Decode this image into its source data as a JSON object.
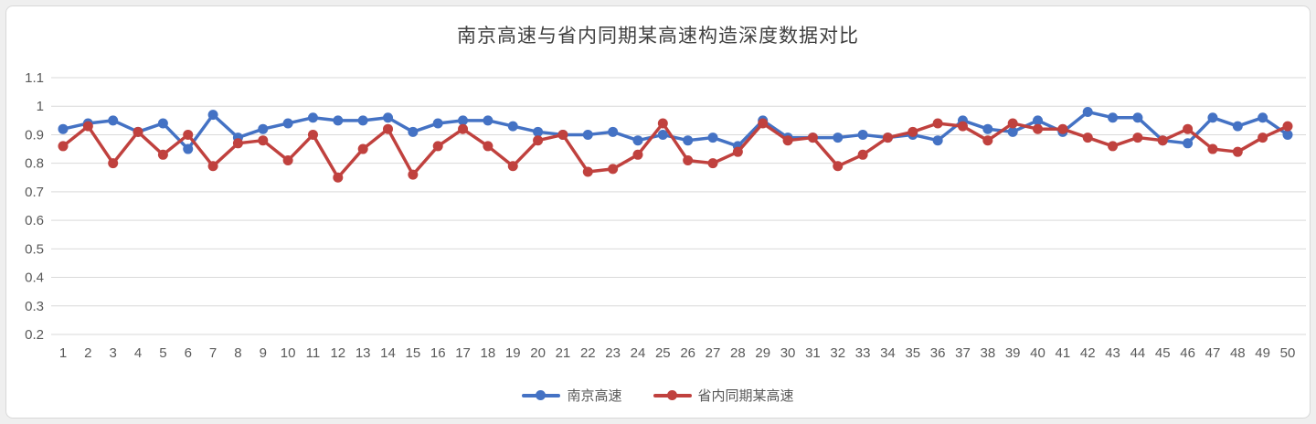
{
  "panel": {
    "background": "#ffffff",
    "border_color": "#d8d8d8"
  },
  "chart_data": {
    "type": "line",
    "title": "南京高速与省内同期某高速构造深度数据对比",
    "xlabel": "",
    "ylabel": "",
    "ylim": [
      0.2,
      1.1
    ],
    "grid": true,
    "legend_position": "bottom",
    "y_ticks": [
      "1.1",
      "1",
      "0.9",
      "0.8",
      "0.7",
      "0.6",
      "0.5",
      "0.4",
      "0.3",
      "0.2"
    ],
    "y_tick_values": [
      1.1,
      1.0,
      0.9,
      0.8,
      0.7,
      0.6,
      0.5,
      0.4,
      0.3,
      0.2
    ],
    "x": [
      1,
      2,
      3,
      4,
      5,
      6,
      7,
      8,
      9,
      10,
      11,
      12,
      13,
      14,
      15,
      16,
      17,
      18,
      19,
      20,
      21,
      22,
      23,
      24,
      25,
      26,
      27,
      28,
      29,
      30,
      31,
      32,
      33,
      34,
      35,
      36,
      37,
      38,
      39,
      40,
      41,
      42,
      43,
      44,
      45,
      46,
      47,
      48,
      49,
      50
    ],
    "series": [
      {
        "name": "南京高速",
        "color": "#4472C4",
        "values": [
          0.92,
          0.94,
          0.95,
          0.91,
          0.94,
          0.85,
          0.97,
          0.89,
          0.92,
          0.94,
          0.96,
          0.95,
          0.95,
          0.96,
          0.91,
          0.94,
          0.95,
          0.95,
          0.93,
          0.91,
          0.9,
          0.9,
          0.91,
          0.88,
          0.9,
          0.88,
          0.89,
          0.86,
          0.95,
          0.89,
          0.89,
          0.89,
          0.9,
          0.89,
          0.9,
          0.88,
          0.95,
          0.92,
          0.91,
          0.95,
          0.91,
          0.98,
          0.96,
          0.96,
          0.88,
          0.87,
          0.96,
          0.93,
          0.96,
          0.9
        ]
      },
      {
        "name": "省内同期某高速",
        "color": "#C0413E",
        "values": [
          0.86,
          0.93,
          0.8,
          0.91,
          0.83,
          0.9,
          0.79,
          0.87,
          0.88,
          0.81,
          0.9,
          0.75,
          0.85,
          0.92,
          0.76,
          0.86,
          0.92,
          0.86,
          0.79,
          0.88,
          0.9,
          0.77,
          0.78,
          0.83,
          0.94,
          0.81,
          0.8,
          0.84,
          0.94,
          0.88,
          0.89,
          0.79,
          0.83,
          0.89,
          0.91,
          0.94,
          0.93,
          0.88,
          0.94,
          0.92,
          0.92,
          0.89,
          0.86,
          0.89,
          0.88,
          0.92,
          0.85,
          0.84,
          0.89,
          0.93
        ]
      }
    ],
    "style": {
      "gridline_color": "#d9d9d9",
      "tick_label_color": "#595959",
      "title_color": "#404040"
    }
  }
}
